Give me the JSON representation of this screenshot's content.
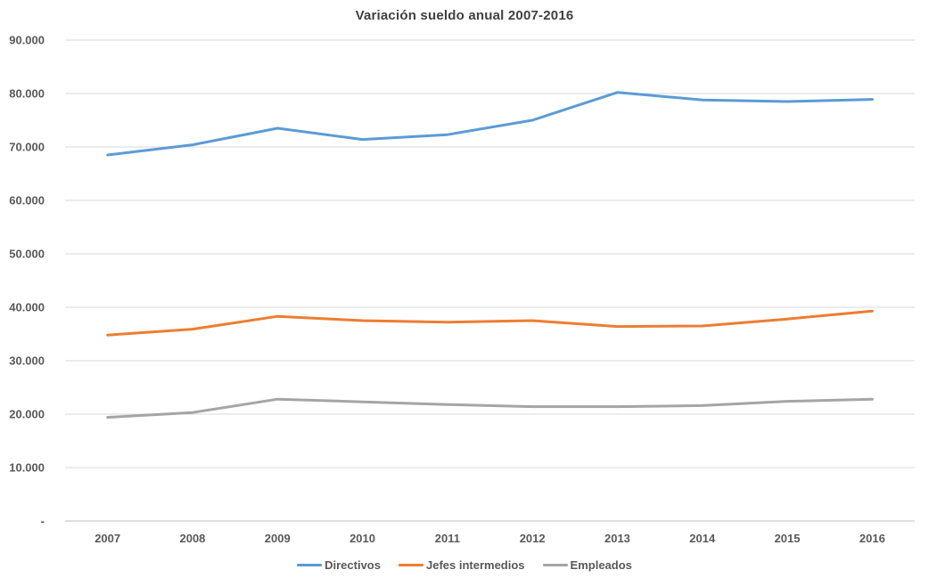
{
  "chart_data": {
    "type": "line",
    "title": "Variación sueldo anual 2007-2016",
    "categories": [
      "2007",
      "2008",
      "2009",
      "2010",
      "2011",
      "2012",
      "2013",
      "2014",
      "2015",
      "2016"
    ],
    "series": [
      {
        "name": "Directivos",
        "color": "#5B9BD5",
        "values": [
          68500,
          70400,
          73500,
          71400,
          72300,
          75000,
          80200,
          78800,
          78500,
          78900
        ]
      },
      {
        "name": "Jefes intermedios",
        "color": "#ED7D31",
        "values": [
          34800,
          35900,
          38300,
          37500,
          37200,
          37500,
          36400,
          36500,
          37800,
          39300
        ]
      },
      {
        "name": "Empleados",
        "color": "#A5A5A5",
        "values": [
          19400,
          20300,
          22800,
          22300,
          21800,
          21400,
          21400,
          21600,
          22400,
          22800
        ]
      }
    ],
    "y_ticks": [
      {
        "value": 90000,
        "label": "90.000"
      },
      {
        "value": 80000,
        "label": "80.000"
      },
      {
        "value": 70000,
        "label": "70.000"
      },
      {
        "value": 60000,
        "label": "60.000"
      },
      {
        "value": 50000,
        "label": "50.000"
      },
      {
        "value": 40000,
        "label": "40.000"
      },
      {
        "value": 30000,
        "label": "30.000"
      },
      {
        "value": 20000,
        "label": "20.000"
      },
      {
        "value": 10000,
        "label": "10.000"
      },
      {
        "value": 0,
        "label": "-"
      }
    ],
    "ylim": [
      0,
      90000
    ],
    "xlabel": "",
    "ylabel": "",
    "grid": true,
    "legend_position": "bottom",
    "colors": {
      "gridline": "#D9D9D9",
      "axis_line": "#BFBFBF",
      "tick_text": "#595959",
      "title_text": "#404040",
      "background": "#FFFFFF"
    }
  }
}
